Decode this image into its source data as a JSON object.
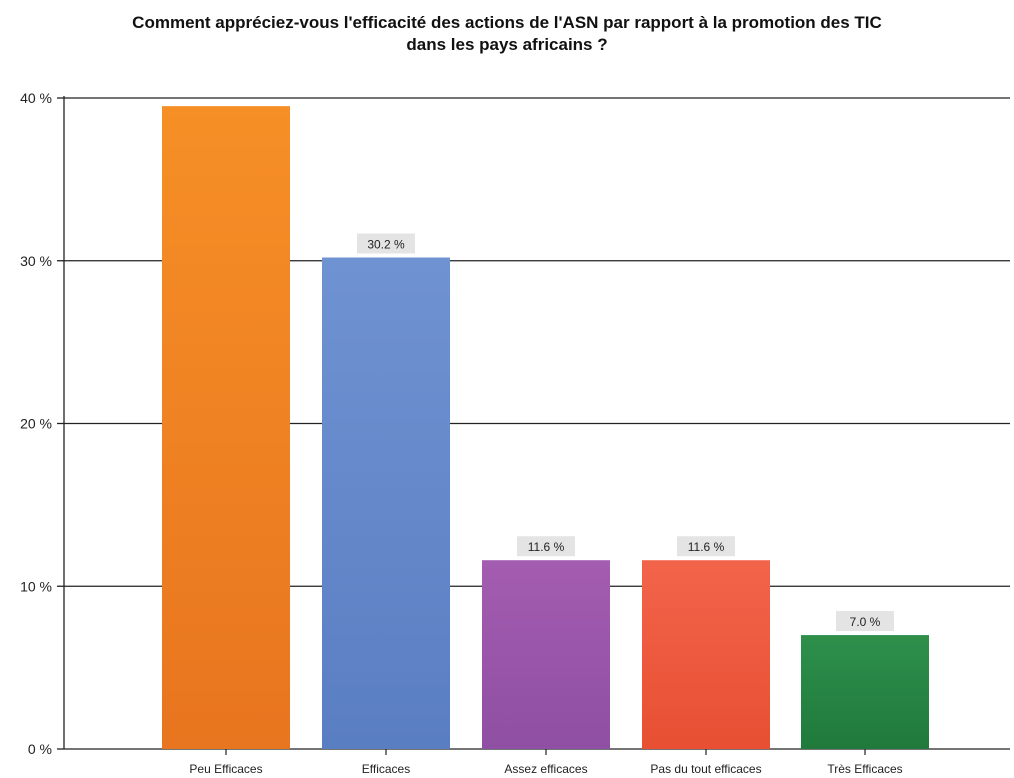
{
  "chart_data": {
    "type": "bar",
    "title_lines": [
      "Comment appréciez-vous l'efficacité des actions de l'ASN par rapport à la promotion des TIC",
      "dans les pays africains ?"
    ],
    "categories": [
      "Peu Efficaces",
      "Efficaces",
      "Assez efficaces",
      "Pas du tout efficaces",
      "Très Efficaces"
    ],
    "values": [
      39.5,
      30.2,
      11.6,
      11.6,
      7.0
    ],
    "data_labels": [
      null,
      "30.2 %",
      "11.6 %",
      "11.6 %",
      "7.0 %"
    ],
    "colors": [
      "#e8751f",
      "#5a7ec2",
      "#8f4fa3",
      "#e84f33",
      "#1f7a3c"
    ],
    "colors_light": [
      "#f68f26",
      "#6f92d2",
      "#a35cb0",
      "#f2644a",
      "#2e8f4b"
    ],
    "yticks": [
      0,
      10,
      20,
      30,
      40
    ],
    "ytick_labels": [
      "0 %",
      "10 %",
      "20 %",
      "30 %",
      "40 %"
    ],
    "ylim": [
      0,
      40
    ],
    "xlabel": "",
    "ylabel": "",
    "grid": true,
    "legend": "none"
  }
}
